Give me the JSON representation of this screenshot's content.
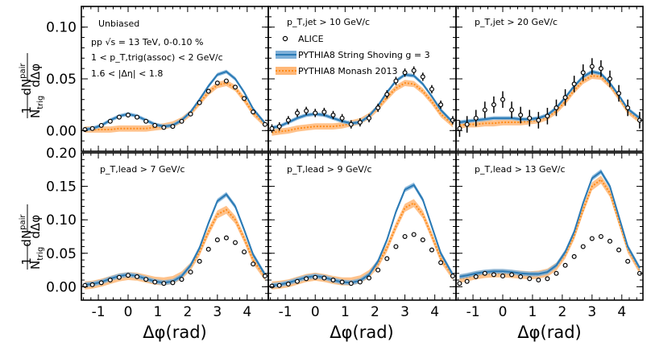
{
  "figure": {
    "ylabel_html": "1/N_trig dN^pair/dΔφ",
    "xlabel": "Δφ(rad)"
  },
  "legend": {
    "alice": "ALICE",
    "shoving": "PYTHIA8 String Shoving g = 3",
    "monash": "PYTHIA8 Monash 2013"
  },
  "colors": {
    "shoving_line": "#2a7ab5",
    "shoving_band": "#7eb0d8",
    "monash_line": "#ff8c1a",
    "monash_band": "#ffb777",
    "data": "#000000"
  },
  "annotations": {
    "unbiased": "Unbiased",
    "energy": "pp √s = 13 TeV, 0-0.10 %",
    "ptassoc": "1 < p_T,trig(assoc) < 2 GeV/c",
    "eta": "1.6 < |Δη| < 1.8",
    "jet10": "p_T,jet > 10 GeV/c",
    "jet20": "p_T,jet > 20 GeV/c",
    "lead7": "p_T,lead > 7 GeV/c",
    "lead9": "p_T,lead > 9 GeV/c",
    "lead13": "p_T,lead > 13 GeV/c"
  },
  "chart_data": [
    {
      "panel": "unbiased",
      "type": "line",
      "xlim": [
        -1.57,
        4.71
      ],
      "ylim": [
        -0.02,
        0.12
      ],
      "xticks": [
        "-1",
        "0",
        "1",
        "2",
        "3",
        "4"
      ],
      "yticks": [
        "0.00",
        "0.05",
        "0.10"
      ],
      "x": [
        -1.45,
        -1.2,
        -0.9,
        -0.6,
        -0.3,
        0,
        0.3,
        0.6,
        0.9,
        1.2,
        1.5,
        1.8,
        2.1,
        2.4,
        2.7,
        3.0,
        3.3,
        3.6,
        3.9,
        4.2,
        4.6
      ],
      "alice": [
        0.001,
        0.002,
        0.005,
        0.009,
        0.013,
        0.015,
        0.013,
        0.009,
        0.005,
        0.003,
        0.004,
        0.009,
        0.016,
        0.027,
        0.038,
        0.046,
        0.048,
        0.042,
        0.031,
        0.018,
        0.006
      ],
      "shoving": [
        0.001,
        0.002,
        0.005,
        0.01,
        0.014,
        0.016,
        0.014,
        0.01,
        0.006,
        0.004,
        0.005,
        0.01,
        0.018,
        0.03,
        0.043,
        0.054,
        0.057,
        0.05,
        0.037,
        0.021,
        0.007
      ],
      "monash": [
        0.001,
        0.001,
        0.001,
        0.001,
        0.002,
        0.002,
        0.002,
        0.002,
        0.003,
        0.004,
        0.006,
        0.01,
        0.017,
        0.027,
        0.037,
        0.044,
        0.046,
        0.041,
        0.03,
        0.017,
        0.006
      ]
    },
    {
      "panel": "jet10",
      "type": "line",
      "xlim": [
        -1.57,
        4.71
      ],
      "ylim": [
        -0.02,
        0.12
      ],
      "x": [
        -1.45,
        -1.2,
        -0.9,
        -0.6,
        -0.3,
        0,
        0.3,
        0.6,
        0.9,
        1.2,
        1.5,
        1.8,
        2.1,
        2.4,
        2.7,
        3.0,
        3.3,
        3.6,
        3.9,
        4.2,
        4.6
      ],
      "alice": [
        0.002,
        0.004,
        0.01,
        0.017,
        0.019,
        0.017,
        0.018,
        0.015,
        0.012,
        0.006,
        0.008,
        0.012,
        0.022,
        0.035,
        0.048,
        0.056,
        0.058,
        0.052,
        0.04,
        0.025,
        0.01
      ],
      "shoving": [
        0.003,
        0.004,
        0.008,
        0.012,
        0.015,
        0.016,
        0.015,
        0.012,
        0.009,
        0.007,
        0.008,
        0.014,
        0.024,
        0.037,
        0.048,
        0.054,
        0.053,
        0.045,
        0.033,
        0.02,
        0.008
      ],
      "monash": [
        -0.002,
        -0.001,
        0.0,
        0.002,
        0.003,
        0.004,
        0.004,
        0.004,
        0.005,
        0.007,
        0.009,
        0.014,
        0.022,
        0.032,
        0.041,
        0.046,
        0.045,
        0.038,
        0.028,
        0.016,
        0.006
      ]
    },
    {
      "panel": "jet20",
      "type": "line",
      "xlim": [
        -1.57,
        4.71
      ],
      "ylim": [
        -0.02,
        0.12
      ],
      "x": [
        -1.45,
        -1.2,
        -0.9,
        -0.6,
        -0.3,
        0,
        0.3,
        0.6,
        0.9,
        1.2,
        1.5,
        1.8,
        2.1,
        2.4,
        2.7,
        3.0,
        3.3,
        3.6,
        3.9,
        4.2,
        4.6
      ],
      "alice": [
        0.002,
        0.006,
        0.012,
        0.02,
        0.025,
        0.03,
        0.02,
        0.015,
        0.012,
        0.01,
        0.014,
        0.022,
        0.032,
        0.045,
        0.056,
        0.062,
        0.06,
        0.05,
        0.036,
        0.022,
        0.01
      ],
      "shoving": [
        0.008,
        0.009,
        0.01,
        0.011,
        0.012,
        0.012,
        0.012,
        0.011,
        0.011,
        0.012,
        0.015,
        0.022,
        0.032,
        0.043,
        0.052,
        0.057,
        0.055,
        0.046,
        0.034,
        0.021,
        0.012
      ],
      "monash": [
        0.005,
        0.006,
        0.006,
        0.007,
        0.007,
        0.008,
        0.008,
        0.008,
        0.009,
        0.01,
        0.013,
        0.019,
        0.028,
        0.039,
        0.048,
        0.053,
        0.052,
        0.044,
        0.032,
        0.019,
        0.01
      ]
    },
    {
      "panel": "lead7",
      "type": "line",
      "xlim": [
        -1.57,
        4.71
      ],
      "ylim": [
        -0.02,
        0.2
      ],
      "xticks": [
        "-1",
        "0",
        "1",
        "2",
        "3",
        "4"
      ],
      "yticks": [
        "0.00",
        "0.05",
        "0.10",
        "0.15",
        "0.20"
      ],
      "x": [
        -1.45,
        -1.2,
        -0.9,
        -0.6,
        -0.3,
        0,
        0.3,
        0.6,
        0.9,
        1.2,
        1.5,
        1.8,
        2.1,
        2.4,
        2.7,
        3.0,
        3.3,
        3.6,
        3.9,
        4.2,
        4.6
      ],
      "alice": [
        0.002,
        0.003,
        0.006,
        0.01,
        0.014,
        0.017,
        0.015,
        0.011,
        0.007,
        0.005,
        0.006,
        0.011,
        0.022,
        0.038,
        0.056,
        0.07,
        0.073,
        0.066,
        0.052,
        0.034,
        0.016
      ],
      "shoving": [
        0.003,
        0.004,
        0.007,
        0.012,
        0.016,
        0.018,
        0.016,
        0.012,
        0.008,
        0.006,
        0.008,
        0.016,
        0.032,
        0.058,
        0.095,
        0.128,
        0.138,
        0.12,
        0.085,
        0.048,
        0.018
      ],
      "monash": [
        0.002,
        0.003,
        0.006,
        0.01,
        0.014,
        0.016,
        0.015,
        0.012,
        0.009,
        0.008,
        0.01,
        0.017,
        0.03,
        0.052,
        0.082,
        0.108,
        0.115,
        0.1,
        0.072,
        0.04,
        0.015
      ]
    },
    {
      "panel": "lead9",
      "type": "line",
      "xlim": [
        -1.57,
        4.71
      ],
      "ylim": [
        -0.02,
        0.2
      ],
      "x": [
        -1.45,
        -1.2,
        -0.9,
        -0.6,
        -0.3,
        0,
        0.3,
        0.6,
        0.9,
        1.2,
        1.5,
        1.8,
        2.1,
        2.4,
        2.7,
        3.0,
        3.3,
        3.6,
        3.9,
        4.2,
        4.6
      ],
      "alice": [
        0.001,
        0.002,
        0.004,
        0.008,
        0.012,
        0.014,
        0.013,
        0.01,
        0.007,
        0.005,
        0.007,
        0.013,
        0.025,
        0.042,
        0.06,
        0.075,
        0.078,
        0.07,
        0.055,
        0.036,
        0.016
      ],
      "shoving": [
        0.002,
        0.003,
        0.006,
        0.01,
        0.014,
        0.016,
        0.014,
        0.01,
        0.007,
        0.006,
        0.009,
        0.018,
        0.038,
        0.07,
        0.112,
        0.145,
        0.152,
        0.13,
        0.09,
        0.05,
        0.018
      ],
      "monash": [
        0.002,
        0.003,
        0.005,
        0.009,
        0.013,
        0.015,
        0.013,
        0.01,
        0.008,
        0.008,
        0.011,
        0.019,
        0.034,
        0.058,
        0.09,
        0.118,
        0.125,
        0.108,
        0.076,
        0.042,
        0.016
      ]
    },
    {
      "panel": "lead13",
      "type": "line",
      "xlim": [
        -1.57,
        4.71
      ],
      "ylim": [
        -0.02,
        0.2
      ],
      "x": [
        -1.45,
        -1.2,
        -0.9,
        -0.6,
        -0.3,
        0,
        0.3,
        0.6,
        0.9,
        1.2,
        1.5,
        1.8,
        2.1,
        2.4,
        2.7,
        3.0,
        3.3,
        3.6,
        3.9,
        4.2,
        4.6
      ],
      "alice": [
        0.005,
        0.008,
        0.015,
        0.02,
        0.018,
        0.016,
        0.018,
        0.015,
        0.012,
        0.01,
        0.012,
        0.02,
        0.032,
        0.045,
        0.06,
        0.072,
        0.075,
        0.068,
        0.055,
        0.038,
        0.02
      ],
      "shoving": [
        0.015,
        0.017,
        0.02,
        0.022,
        0.023,
        0.023,
        0.022,
        0.02,
        0.019,
        0.019,
        0.022,
        0.032,
        0.052,
        0.082,
        0.125,
        0.162,
        0.172,
        0.15,
        0.105,
        0.06,
        0.028
      ],
      "monash": [
        0.012,
        0.014,
        0.017,
        0.019,
        0.02,
        0.02,
        0.019,
        0.018,
        0.017,
        0.018,
        0.021,
        0.03,
        0.048,
        0.076,
        0.115,
        0.15,
        0.16,
        0.14,
        0.098,
        0.056,
        0.025
      ]
    }
  ]
}
